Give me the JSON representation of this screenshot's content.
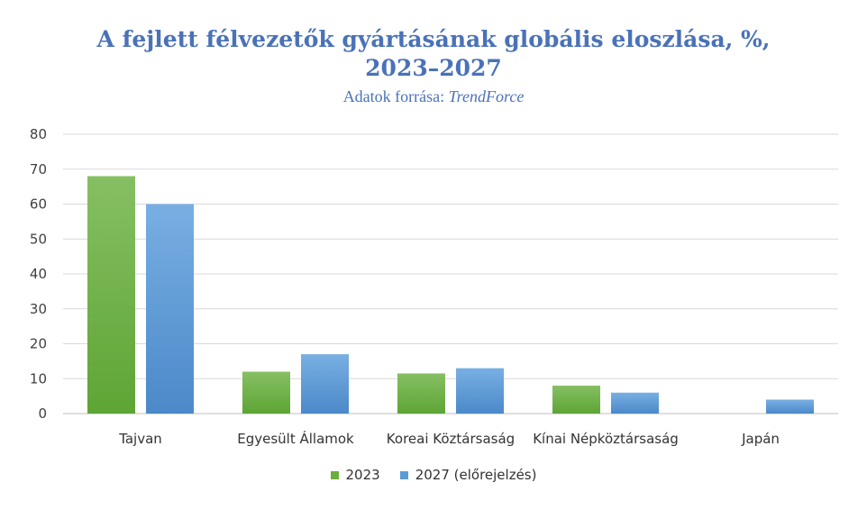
{
  "chart_data": {
    "type": "bar",
    "title_line1": "A fejlett félvezetők gyártásának globális eloszlása, %,",
    "title_line2": "2023–2027",
    "subtitle_prefix": "Adatok forrása: ",
    "subtitle_source": "TrendForce",
    "categories": [
      "Tajvan",
      "Egyesült Államok",
      "Koreai Köztársaság",
      "Kínai Népköztársaság",
      "Japán"
    ],
    "series": [
      {
        "name": "2023",
        "values": [
          68,
          12,
          11.5,
          8,
          0
        ],
        "color": "#6aae3e"
      },
      {
        "name": "2027 (előrejelzés)",
        "values": [
          60,
          17,
          13,
          6,
          4
        ],
        "color": "#5b9bd5"
      }
    ],
    "ylim": [
      0,
      80
    ],
    "yticks": [
      0,
      10,
      20,
      30,
      40,
      50,
      60,
      70,
      80
    ],
    "grid": true,
    "legend_position": "bottom"
  }
}
